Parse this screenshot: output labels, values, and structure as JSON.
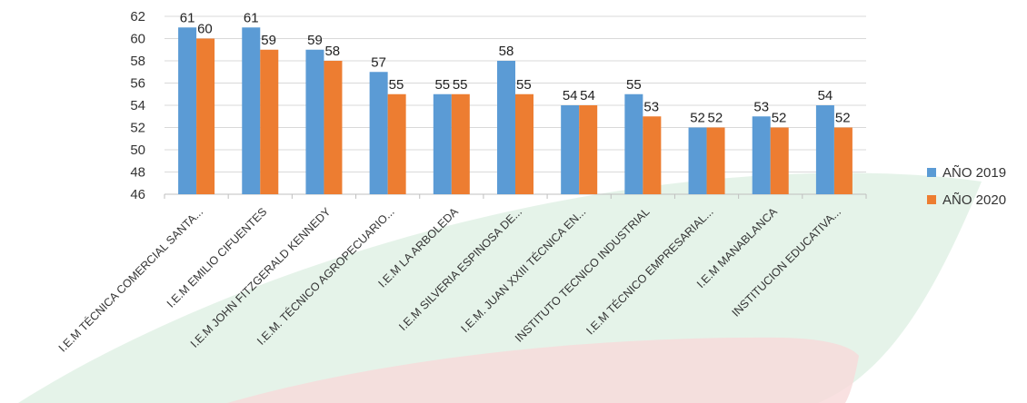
{
  "chart_data": {
    "type": "bar",
    "title": "",
    "xlabel": "",
    "ylabel": "",
    "ylim": [
      46,
      62
    ],
    "yticks": [
      46,
      48,
      50,
      52,
      54,
      56,
      58,
      60,
      62
    ],
    "grid": true,
    "legend_position": "right",
    "categories": [
      "I.E.M TÉCNICA COMERCIAL SANTA...",
      "I.E.M EMILIO CIFUENTES",
      "I.E.M JOHN FITZGERALD KENNEDY",
      "I.E.M. TÉCNICO AGROPECUARIO...",
      "I.E.M LA ARBOLEDA",
      "I.E.M SILVERIA ESPINOSA DE...",
      "I.E.M. JUAN XXIII TÉCNICA EN...",
      "INSTITUTO TECNICO INDUSTRIAL",
      "I.E.M TÉCNICO EMPRESARIAL...",
      "I.E.M MANABLANCA",
      "INSTITUCION EDUCATIVA..."
    ],
    "series": [
      {
        "name": "AÑO 2019",
        "color": "#5B9BD5",
        "values": [
          61,
          61,
          59,
          57,
          55,
          58,
          54,
          55,
          52,
          53,
          54
        ]
      },
      {
        "name": "AÑO 2020",
        "color": "#ED7D31",
        "values": [
          60,
          59,
          58,
          55,
          55,
          55,
          54,
          53,
          52,
          52,
          52
        ]
      }
    ]
  }
}
